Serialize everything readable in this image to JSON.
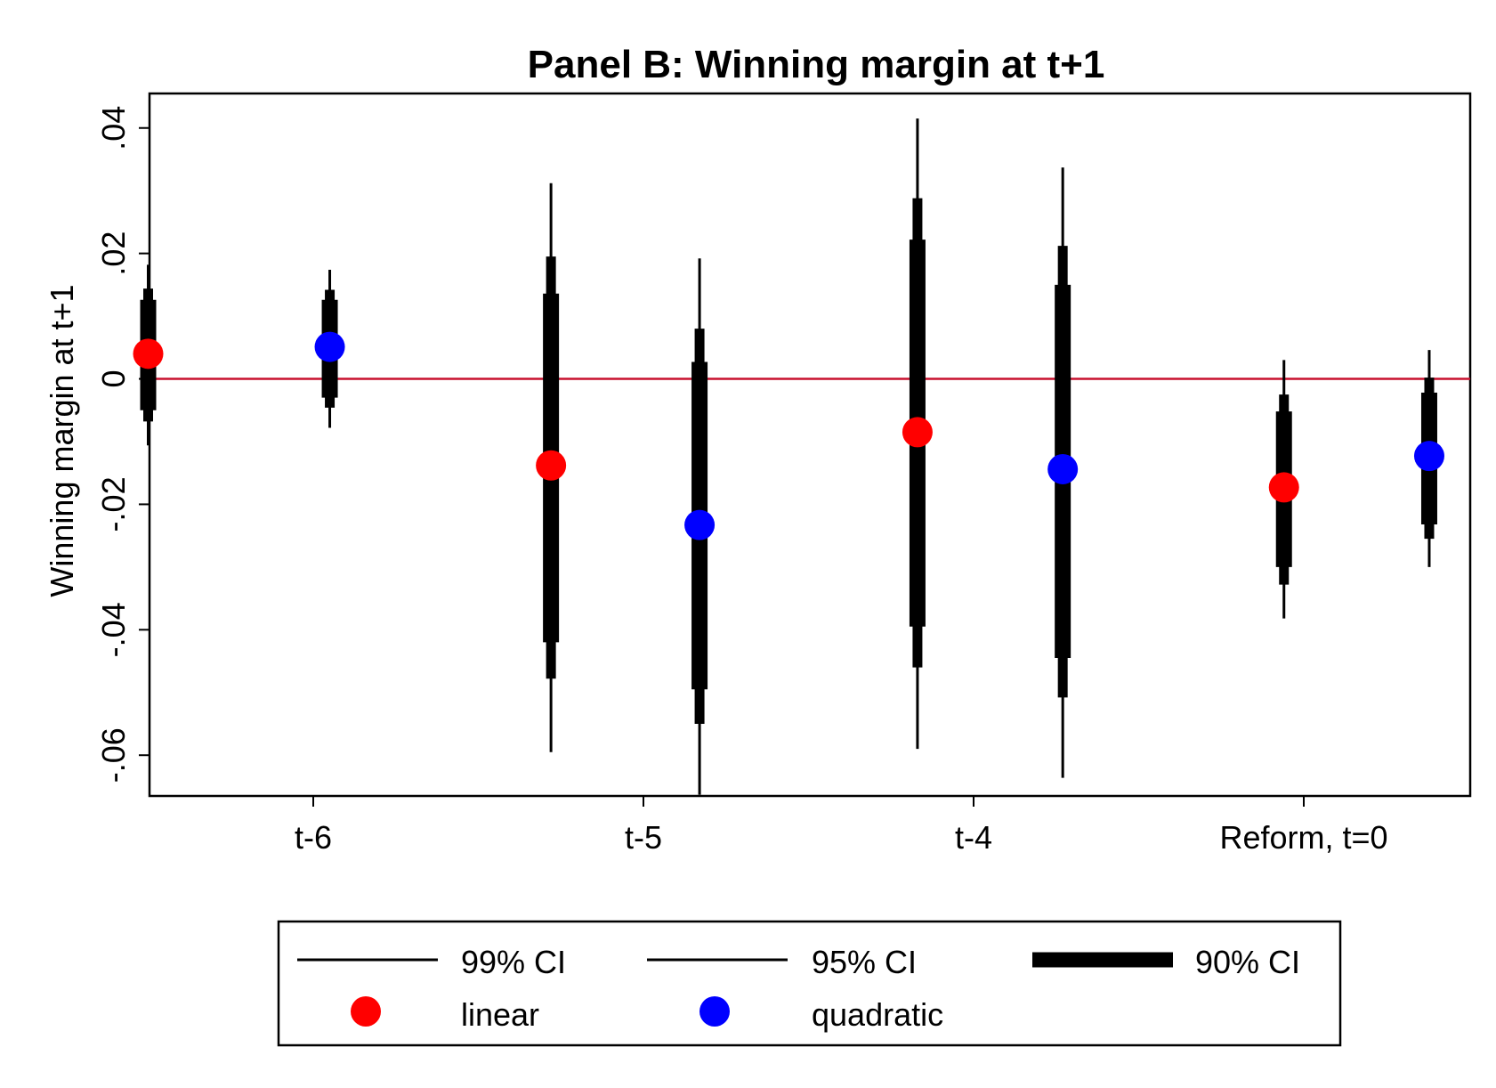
{
  "chart_data": {
    "type": "scatter",
    "title": "Panel B: Winning margin at t+1",
    "ylabel": "Winning margin at t+1",
    "xlabel": "",
    "categories": [
      "t-6",
      "t-5",
      "t-4",
      "Reform, t=0"
    ],
    "ylim": [
      -0.0665,
      0.0455
    ],
    "yticks": [
      {
        "value": 0.04,
        "label": ".04"
      },
      {
        "value": 0.02,
        "label": ".02"
      },
      {
        "value": 0,
        "label": "0"
      },
      {
        "value": -0.02,
        "label": "-.02"
      },
      {
        "value": -0.04,
        "label": "-.04"
      },
      {
        "value": -0.06,
        "label": "-.06"
      }
    ],
    "reference_line": {
      "value": 0,
      "color": "#c8102e"
    },
    "colors": {
      "linear": "#ff0000",
      "quadratic": "#0000ff",
      "ci": "#000000"
    },
    "series": [
      {
        "name": "linear",
        "points": [
          {
            "x": -0.5,
            "estimate": 0.004,
            "ci99": [
              -0.0106,
              0.0182
            ],
            "ci95": [
              -0.0068,
              0.0144
            ],
            "ci90": [
              -0.005,
              0.0126
            ]
          },
          {
            "x": 0.72,
            "estimate": -0.0138,
            "ci99": [
              -0.0595,
              0.0312
            ],
            "ci95": [
              -0.0478,
              0.0195
            ],
            "ci90": [
              -0.042,
              0.0136
            ]
          },
          {
            "x": 1.83,
            "estimate": -0.0085,
            "ci99": [
              -0.059,
              0.0415
            ],
            "ci95": [
              -0.046,
              0.0288
            ],
            "ci90": [
              -0.0395,
              0.0222
            ]
          },
          {
            "x": 2.94,
            "estimate": -0.0173,
            "ci99": [
              -0.0382,
              0.003
            ],
            "ci95": [
              -0.0328,
              -0.0025
            ],
            "ci90": [
              -0.03,
              -0.0052
            ]
          }
        ]
      },
      {
        "name": "quadratic",
        "points": [
          {
            "x": 0.05,
            "estimate": 0.0051,
            "ci99": [
              -0.0078,
              0.0174
            ],
            "ci95": [
              -0.0046,
              0.0142
            ],
            "ci90": [
              -0.003,
              0.0126
            ]
          },
          {
            "x": 1.17,
            "estimate": -0.0233,
            "ci99": [
              -0.0663,
              0.0192
            ],
            "ci95": [
              -0.055,
              0.008
            ],
            "ci90": [
              -0.0495,
              0.0027
            ]
          },
          {
            "x": 2.27,
            "estimate": -0.0144,
            "ci99": [
              -0.0636,
              0.0337
            ],
            "ci95": [
              -0.0508,
              0.0212
            ],
            "ci90": [
              -0.0445,
              0.015
            ]
          },
          {
            "x": 3.38,
            "estimate": -0.0123,
            "ci99": [
              -0.03,
              0.0046
            ],
            "ci95": [
              -0.0255,
              0.0002
            ],
            "ci90": [
              -0.0232,
              -0.0022
            ]
          }
        ]
      }
    ],
    "legend": {
      "placement": "bottom",
      "items": [
        {
          "label": "99% CI",
          "kind": "ci99"
        },
        {
          "label": "95% CI",
          "kind": "ci95"
        },
        {
          "label": "90% CI",
          "kind": "ci90"
        },
        {
          "label": "linear",
          "kind": "linear"
        },
        {
          "label": "quadratic",
          "kind": "quadratic"
        }
      ]
    }
  }
}
